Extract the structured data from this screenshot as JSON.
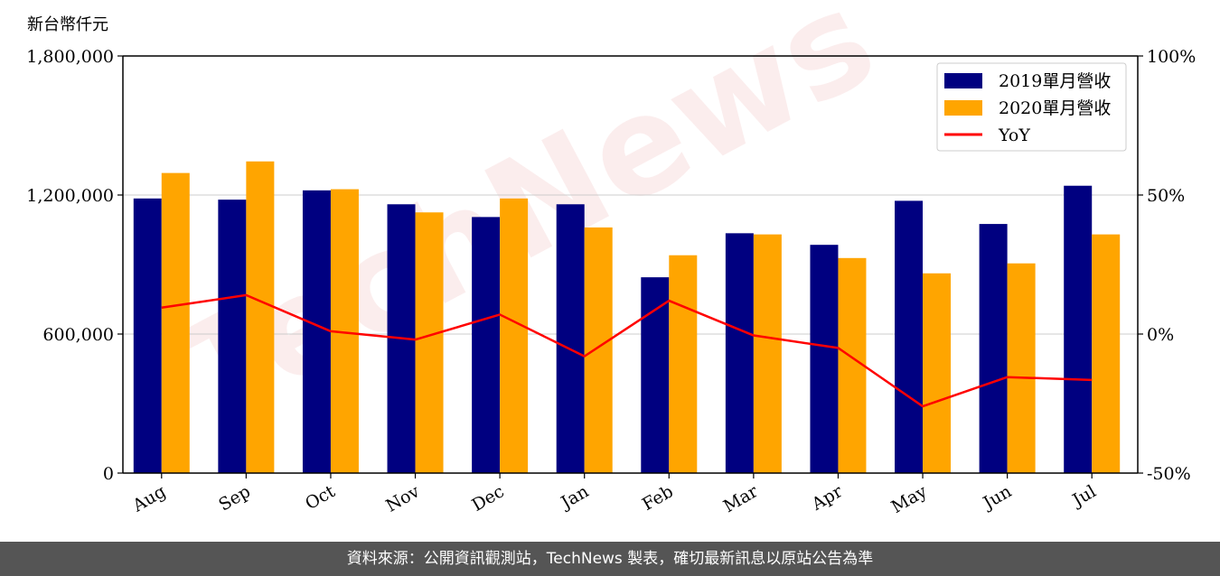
{
  "footer_note": "資料來源：公開資訊觀測站，TechNews 製表，確切最新訊息以原站公告為準",
  "watermark": "TechNews",
  "colors": {
    "bar_2019": "#000080",
    "bar_2020": "#FFA500",
    "yoy_line": "#FF0000",
    "grid": "#cccccc",
    "footer_bg": "#555555"
  },
  "chart_data": {
    "type": "bar",
    "unit_label": "新台幣仟元",
    "categories": [
      "Aug",
      "Sep",
      "Oct",
      "Nov",
      "Dec",
      "Jan",
      "Feb",
      "Mar",
      "Apr",
      "May",
      "Jun",
      "Jul"
    ],
    "series": [
      {
        "name": "2019單月營收",
        "type": "bar",
        "axis": "left",
        "values": [
          1185000,
          1180000,
          1220000,
          1160000,
          1105000,
          1160000,
          845000,
          1035000,
          985000,
          1175000,
          1075000,
          1240000
        ]
      },
      {
        "name": "2020單月營收",
        "type": "bar",
        "axis": "left",
        "values": [
          1295000,
          1345000,
          1225000,
          1125000,
          1185000,
          1060000,
          940000,
          1030000,
          928000,
          862000,
          905000,
          1030000
        ]
      },
      {
        "name": "YoY",
        "type": "line",
        "axis": "right",
        "values": [
          9.5,
          14,
          1,
          -2,
          7,
          -8,
          12,
          -0.5,
          -5,
          -26,
          -15.5,
          -16.5
        ]
      }
    ],
    "y_left": {
      "min": 0,
      "max": 1800000,
      "ticks": [
        0,
        600000,
        1200000,
        1800000
      ],
      "tick_labels": [
        "0",
        "600,000",
        "1,200,000",
        "1,800,000"
      ]
    },
    "y_right": {
      "min": -50,
      "max": 100,
      "ticks": [
        -50,
        0,
        50,
        100
      ],
      "tick_labels": [
        "-50%",
        "0%",
        "50%",
        "100%"
      ]
    },
    "grid": "horizontal",
    "legend": "top-right"
  }
}
